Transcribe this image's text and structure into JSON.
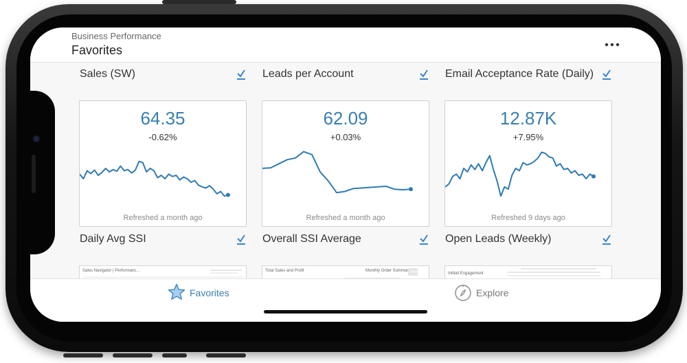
{
  "header": {
    "breadcrumb": "Business Performance",
    "title": "Favorites",
    "more_icon": "more-horizontal-icon"
  },
  "favorites": [
    {
      "title": "Sales (SW)",
      "value": "64.35",
      "change": "-0.62%",
      "refreshed": "Refreshed a month ago",
      "trend": [
        52,
        44,
        58,
        53,
        59,
        50,
        55,
        62,
        56,
        60,
        57,
        66,
        58,
        60,
        54,
        59,
        74,
        72,
        56,
        62,
        58,
        46,
        50,
        44,
        52,
        48,
        50,
        42,
        47,
        44,
        38,
        41,
        33,
        30,
        28,
        32,
        26,
        18,
        22,
        14,
        16
      ]
    },
    {
      "title": "Leads per Account",
      "value": "62.09",
      "change": "+0.03%",
      "refreshed": "Refreshed a month ago",
      "trend": [
        62,
        63,
        70,
        77,
        80,
        91,
        86,
        56,
        40,
        20,
        22,
        27,
        28,
        29,
        30,
        31,
        26,
        25,
        26
      ]
    },
    {
      "title": "Email Acceptance Rate (Daily)",
      "value": "12.87K",
      "change": "+7.95%",
      "refreshed": "Refreshed 9 days ago",
      "trend": [
        30,
        35,
        48,
        52,
        44,
        62,
        56,
        68,
        60,
        70,
        58,
        72,
        84,
        60,
        40,
        14,
        30,
        26,
        50,
        62,
        58,
        72,
        68,
        70,
        74,
        80,
        90,
        88,
        82,
        80,
        66,
        70,
        60,
        62,
        54,
        58,
        50,
        52,
        44,
        52,
        48
      ]
    },
    {
      "title": "Daily Avg SSI",
      "thumb_label": "Sales Navigator | Performanc..."
    },
    {
      "title": "Overall SSI Average",
      "thumb_label": "Total Sales and Profit",
      "thumb_label_2": "Monthly Order Summary"
    },
    {
      "title": "Open Leads (Weekly)",
      "thumb_label": "InMail Engagement"
    }
  ],
  "tabs": [
    {
      "label": "Favorites",
      "icon": "star-icon",
      "active": true
    },
    {
      "label": "Explore",
      "icon": "compass-icon",
      "active": false
    }
  ],
  "colors": {
    "accent": "#3a7fb0",
    "line": "#2f7ab3",
    "check": "#3a86c6"
  }
}
